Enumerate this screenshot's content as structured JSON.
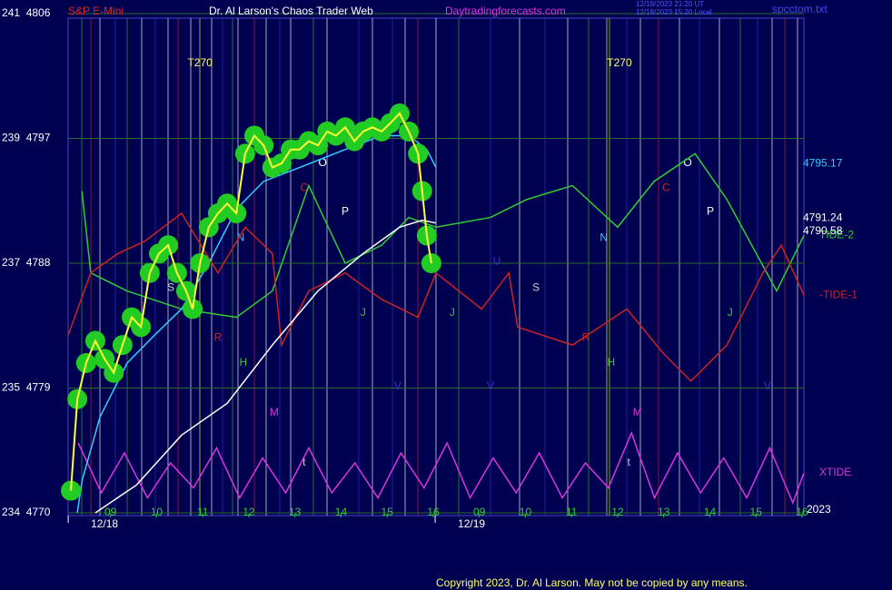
{
  "header": {
    "instrument": "S&P E-Mini",
    "site": "Dr. Al Larson's Chaos Trader Web",
    "url": "Daytradingforecasts.com",
    "stamp_1": "12/18/2023 21:20 UT",
    "stamp_2": "12/18/2023 15:20 Local",
    "file": "spcctom.txt"
  },
  "footer": {
    "copyright": "Copyright 2023, Dr. Al Larson. May not be copied by any means.",
    "year": "2023"
  },
  "chart_data": {
    "type": "line",
    "xlim": [
      0.08,
      16.06
    ],
    "ylim": [
      4770,
      4806
    ],
    "y2lim": [
      0,
      10
    ],
    "grid": true,
    "yticks": [
      {
        "value": 4806,
        "label": "241  4806"
      },
      {
        "value": 4797,
        "label": "239  4797"
      },
      {
        "value": 4788,
        "label": "237  4788"
      },
      {
        "value": 4779,
        "label": "235  4779"
      },
      {
        "value": 4770,
        "label": "234  4770"
      }
    ],
    "xticks": [
      {
        "value": 1,
        "label": "09"
      },
      {
        "value": 2,
        "label": "10"
      },
      {
        "value": 3,
        "label": "11"
      },
      {
        "value": 4,
        "label": "12"
      },
      {
        "value": 5,
        "label": "13"
      },
      {
        "value": 6,
        "label": "14"
      },
      {
        "value": 7,
        "label": "15"
      },
      {
        "value": 8,
        "label": "16"
      },
      {
        "value": 9,
        "label": "09"
      },
      {
        "value": 10,
        "label": "10"
      },
      {
        "value": 11,
        "label": "11"
      },
      {
        "value": 12,
        "label": "12"
      },
      {
        "value": 13,
        "label": "13"
      },
      {
        "value": 14,
        "label": "14"
      },
      {
        "value": 15,
        "label": "15"
      },
      {
        "value": 16,
        "label": "16"
      }
    ],
    "date_ticks": [
      {
        "value": 0.87,
        "label": "12/18"
      },
      {
        "value": 8.83,
        "label": "12/19"
      }
    ],
    "series": [
      {
        "name": "TIDE-2",
        "color": "#33cc33",
        "x": [
          0.38,
          0.57,
          1.36,
          2.54,
          3.73,
          4.51,
          5.3,
          6.09,
          6.88,
          7.47,
          8.06,
          9.24,
          10.03,
          11.02,
          12.0,
          12.79,
          13.68,
          14.37,
          15.45,
          16.04
        ],
        "values": [
          4793.2,
          4787.3,
          4786.0,
          4784.7,
          4784.1,
          4786.0,
          4793.6,
          4788.0,
          4789.3,
          4791.3,
          4790.6,
          4791.3,
          4792.6,
          4793.6,
          4790.6,
          4793.9,
          4795.9,
          4792.6,
          4786.0,
          4790.0
        ]
      },
      {
        "name": "-TIDE-1",
        "color": "#cc2222",
        "x": [
          0.08,
          0.57,
          1.16,
          1.75,
          2.54,
          3.33,
          3.92,
          4.51,
          4.71,
          5.3,
          6.09,
          6.88,
          7.67,
          8.06,
          9.05,
          9.64,
          9.83,
          11.02,
          12.2,
          12.99,
          13.59,
          14.37,
          15.15,
          15.55,
          16.04
        ],
        "values": [
          4782.8,
          4787.3,
          4788.7,
          4789.6,
          4791.6,
          4787.3,
          4790.6,
          4788.7,
          4782.1,
          4786.0,
          4787.3,
          4785.4,
          4784.1,
          4787.3,
          4784.7,
          4787.3,
          4783.4,
          4782.1,
          4784.7,
          4781.5,
          4779.5,
          4782.1,
          4787.3,
          4789.3,
          4785.7
        ]
      },
      {
        "name": "XTIDE",
        "color": "#dd33dd",
        "axis": "y2",
        "x": [
          0.3,
          0.8,
          1.3,
          1.8,
          2.3,
          2.8,
          3.3,
          3.8,
          4.3,
          4.8,
          5.3,
          5.8,
          6.3,
          6.8,
          7.3,
          7.8,
          8.3,
          8.8,
          9.3,
          9.8,
          10.3,
          10.8,
          11.3,
          11.8,
          12.3,
          12.8,
          13.3,
          13.8,
          14.3,
          14.8,
          15.3,
          15.8,
          16.04
        ],
        "values": [
          1.4,
          0.4,
          1.2,
          0.3,
          1.0,
          0.5,
          1.3,
          0.3,
          1.1,
          0.4,
          1.3,
          0.4,
          1.0,
          0.3,
          1.2,
          0.5,
          1.4,
          0.3,
          1.1,
          0.4,
          1.2,
          0.3,
          1.0,
          0.5,
          1.6,
          0.3,
          1.2,
          0.4,
          1.1,
          0.3,
          1.3,
          0.2,
          0.8
        ]
      },
      {
        "color": "#ffffff",
        "x": [
          0.67,
          1.56,
          2.54,
          3.53,
          4.51,
          5.5,
          6.48,
          7.27,
          7.76,
          8.06
        ],
        "values": [
          4770.0,
          4772.0,
          4775.6,
          4777.9,
          4782.1,
          4786.0,
          4788.7,
          4790.6,
          4791.1,
          4790.9
        ]
      },
      {
        "color": "#33ccff",
        "x": [
          0.28,
          0.38,
          0.77,
          1.36,
          1.95,
          2.54,
          3.13,
          3.73,
          4.32,
          5.1,
          6.09,
          6.88,
          7.47,
          7.86,
          8.06
        ],
        "values": [
          4770.0,
          4772.3,
          4776.9,
          4780.8,
          4782.8,
          4784.7,
          4788.0,
          4791.9,
          4793.9,
          4794.9,
          4796.2,
          4797.2,
          4797.2,
          4796.2,
          4794.9
        ]
      },
      {
        "color": "#ffff33",
        "halo": "#22cc22",
        "x": [
          0.14,
          0.28,
          0.47,
          0.67,
          0.87,
          1.07,
          1.26,
          1.46,
          1.66,
          1.85,
          2.05,
          2.25,
          2.44,
          2.64,
          2.78,
          2.94,
          3.13,
          3.33,
          3.53,
          3.73,
          3.92,
          4.12,
          4.32,
          4.51,
          4.71,
          4.91,
          5.1,
          5.3,
          5.5,
          5.7,
          5.89,
          6.09,
          6.29,
          6.48,
          6.68,
          6.88,
          7.07,
          7.27,
          7.47,
          7.67,
          7.76,
          7.86,
          7.96
        ],
        "values": [
          4771.6,
          4778.2,
          4780.8,
          4782.4,
          4781.1,
          4780.1,
          4782.1,
          4784.1,
          4783.4,
          4787.3,
          4788.7,
          4789.3,
          4787.3,
          4786.0,
          4784.7,
          4788.0,
          4790.6,
          4791.6,
          4792.3,
          4791.6,
          4795.9,
          4797.2,
          4796.5,
          4794.9,
          4795.2,
          4796.2,
          4796.2,
          4796.8,
          4796.5,
          4797.5,
          4797.2,
          4797.8,
          4796.8,
          4797.5,
          4797.8,
          4797.5,
          4798.1,
          4798.8,
          4797.5,
          4795.9,
          4793.2,
          4790.0,
          4788.0
        ]
      }
    ],
    "price_labels": [
      {
        "value": 4795.17,
        "color": "#33ccff"
      },
      {
        "value": 4791.24,
        "color": "#ffffff"
      },
      {
        "value": 4790.58,
        "color": "#ffffff"
      }
    ],
    "annotations": [
      {
        "text": "T270",
        "x": 2.94,
        "y": 4802.4,
        "color": "#ffff66"
      },
      {
        "text": "T270",
        "x": 12.04,
        "y": 4802.4,
        "color": "#ffff66"
      },
      {
        "text": "N",
        "x": 3.82,
        "y": 4789.8,
        "color": "#33ccff"
      },
      {
        "text": "S",
        "x": 2.31,
        "y": 4786.2,
        "color": "#cccccc"
      },
      {
        "text": "R",
        "x": 3.33,
        "y": 4782.6,
        "color": "#cc2222"
      },
      {
        "text": "H",
        "x": 3.88,
        "y": 4780.8,
        "color": "#33cc33"
      },
      {
        "text": "M",
        "x": 4.55,
        "y": 4777.2,
        "color": "#dd33dd"
      },
      {
        "text": "t",
        "x": 5.2,
        "y": 4773.6,
        "color": "#cccccc"
      },
      {
        "text": "C",
        "x": 5.2,
        "y": 4793.4,
        "color": "#cc2222"
      },
      {
        "text": "O",
        "x": 5.6,
        "y": 4795.2,
        "color": "#ffffff"
      },
      {
        "text": "P",
        "x": 6.09,
        "y": 4791.7,
        "color": "#ffffff"
      },
      {
        "text": "J",
        "x": 6.48,
        "y": 4784.4,
        "color": "#33cc33"
      },
      {
        "text": "V",
        "x": 7.23,
        "y": 4779.1,
        "color": "#3333cc"
      },
      {
        "text": "J",
        "x": 8.41,
        "y": 4784.4,
        "color": "#33cc33"
      },
      {
        "text": "U",
        "x": 9.38,
        "y": 4788.1,
        "color": "#3333cc"
      },
      {
        "text": "V",
        "x": 9.24,
        "y": 4779.1,
        "color": "#3333cc"
      },
      {
        "text": "S",
        "x": 10.23,
        "y": 4786.2,
        "color": "#cccccc"
      },
      {
        "text": "N",
        "x": 11.7,
        "y": 4789.8,
        "color": "#33ccff"
      },
      {
        "text": "R",
        "x": 11.31,
        "y": 4782.6,
        "color": "#cc2222"
      },
      {
        "text": "H",
        "x": 11.86,
        "y": 4780.8,
        "color": "#33cc33"
      },
      {
        "text": "M",
        "x": 12.43,
        "y": 4777.2,
        "color": "#dd33dd"
      },
      {
        "text": "t",
        "x": 12.24,
        "y": 4773.6,
        "color": "#cccccc"
      },
      {
        "text": "C",
        "x": 13.05,
        "y": 4793.4,
        "color": "#cc2222"
      },
      {
        "text": "O",
        "x": 13.52,
        "y": 4795.2,
        "color": "#ffffff"
      },
      {
        "text": "P",
        "x": 14.01,
        "y": 4791.7,
        "color": "#ffffff"
      },
      {
        "text": "J",
        "x": 14.44,
        "y": 4784.4,
        "color": "#33cc33"
      },
      {
        "text": "V",
        "x": 15.25,
        "y": 4779.1,
        "color": "#3333cc"
      }
    ]
  }
}
